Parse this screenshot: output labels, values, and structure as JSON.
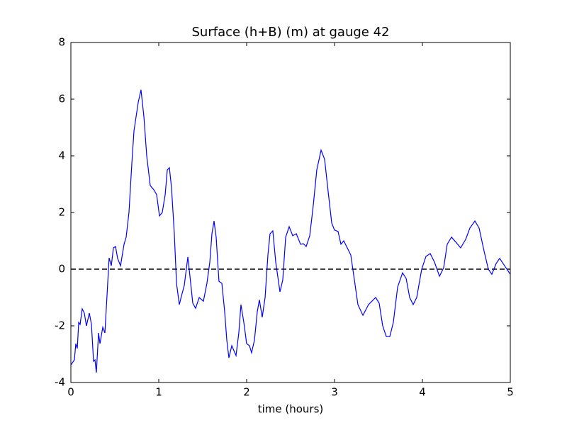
{
  "chart_data": {
    "type": "line",
    "title": "Surface (h+B) (m) at gauge 42",
    "xlabel": "time (hours)",
    "x": [
      0,
      0.04,
      0.056,
      0.073,
      0.089,
      0.105,
      0.129,
      0.153,
      0.177,
      0.21,
      0.234,
      0.258,
      0.274,
      0.29,
      0.315,
      0.331,
      0.363,
      0.387,
      0.41,
      0.435,
      0.46,
      0.484,
      0.508,
      0.532,
      0.565,
      0.605,
      0.629,
      0.661,
      0.694,
      0.718,
      0.742,
      0.766,
      0.798,
      0.831,
      0.863,
      0.903,
      0.944,
      0.976,
      1.008,
      1.04,
      1.073,
      1.097,
      1.121,
      1.145,
      1.177,
      1.202,
      1.234,
      1.258,
      1.29,
      1.331,
      1.355,
      1.387,
      1.419,
      1.46,
      1.508,
      1.548,
      1.581,
      1.605,
      1.629,
      1.653,
      1.685,
      1.718,
      1.75,
      1.774,
      1.798,
      1.831,
      1.879,
      1.911,
      1.935,
      1.968,
      2.0,
      2.032,
      2.056,
      2.089,
      2.121,
      2.145,
      2.177,
      2.21,
      2.242,
      2.266,
      2.298,
      2.331,
      2.379,
      2.411,
      2.444,
      2.484,
      2.524,
      2.565,
      2.613,
      2.645,
      2.677,
      2.718,
      2.758,
      2.798,
      2.847,
      2.887,
      2.927,
      2.968,
      3.0,
      3.04,
      3.073,
      3.105,
      3.145,
      3.185,
      3.226,
      3.266,
      3.323,
      3.387,
      3.468,
      3.508,
      3.548,
      3.589,
      3.629,
      3.669,
      3.718,
      3.774,
      3.815,
      3.855,
      3.895,
      3.935,
      3.992,
      4.04,
      4.089,
      4.137,
      4.194,
      4.242,
      4.282,
      4.331,
      4.387,
      4.435,
      4.492,
      4.54,
      4.597,
      4.645,
      4.702,
      4.75,
      4.79,
      4.839,
      4.879,
      4.935,
      5.0
    ],
    "series": [
      {
        "name": "Surface",
        "color": "#0000ff",
        "values": [
          -3.38,
          -3.2,
          -2.63,
          -2.8,
          -1.88,
          -1.95,
          -1.4,
          -1.55,
          -2.0,
          -1.55,
          -1.95,
          -3.25,
          -3.2,
          -3.65,
          -2.25,
          -2.63,
          -2.05,
          -2.25,
          -1.0,
          0.4,
          0.12,
          0.75,
          0.8,
          0.38,
          0.12,
          0.88,
          1.13,
          2.0,
          3.75,
          4.88,
          5.38,
          5.88,
          6.33,
          5.38,
          4.0,
          2.95,
          2.8,
          2.63,
          1.88,
          2.0,
          2.63,
          3.5,
          3.58,
          2.88,
          1.25,
          -0.5,
          -1.25,
          -0.95,
          -0.58,
          0.43,
          -0.25,
          -1.2,
          -1.38,
          -1.0,
          -1.13,
          -0.5,
          0.25,
          1.25,
          1.7,
          1.13,
          -0.43,
          -0.5,
          -1.5,
          -2.5,
          -3.13,
          -2.7,
          -3.05,
          -2.25,
          -1.25,
          -1.88,
          -2.63,
          -2.7,
          -2.95,
          -2.5,
          -1.5,
          -1.08,
          -1.7,
          -1.0,
          0.5,
          1.25,
          1.35,
          0.25,
          -0.8,
          -0.38,
          1.13,
          1.5,
          1.18,
          1.25,
          0.88,
          0.9,
          0.8,
          1.18,
          2.25,
          3.5,
          4.2,
          3.88,
          2.75,
          1.63,
          1.38,
          1.33,
          0.88,
          1.0,
          0.75,
          0.5,
          -0.38,
          -1.25,
          -1.63,
          -1.25,
          -1.0,
          -1.2,
          -2.0,
          -2.38,
          -2.38,
          -1.88,
          -0.63,
          -0.13,
          -0.33,
          -1.0,
          -1.25,
          -1.0,
          0.0,
          0.45,
          0.55,
          0.25,
          -0.25,
          0.05,
          0.88,
          1.13,
          0.93,
          0.75,
          1.05,
          1.45,
          1.7,
          1.45,
          0.63,
          0.0,
          -0.18,
          0.2,
          0.38,
          0.12,
          -0.18
        ]
      }
    ],
    "hlines": [
      0
    ],
    "xlim": [
      0,
      5
    ],
    "xticks": [
      0,
      1,
      2,
      3,
      4,
      5
    ],
    "ylim": [
      -4,
      8
    ],
    "yticks": [
      -4,
      -2,
      0,
      2,
      4,
      6,
      8
    ]
  }
}
